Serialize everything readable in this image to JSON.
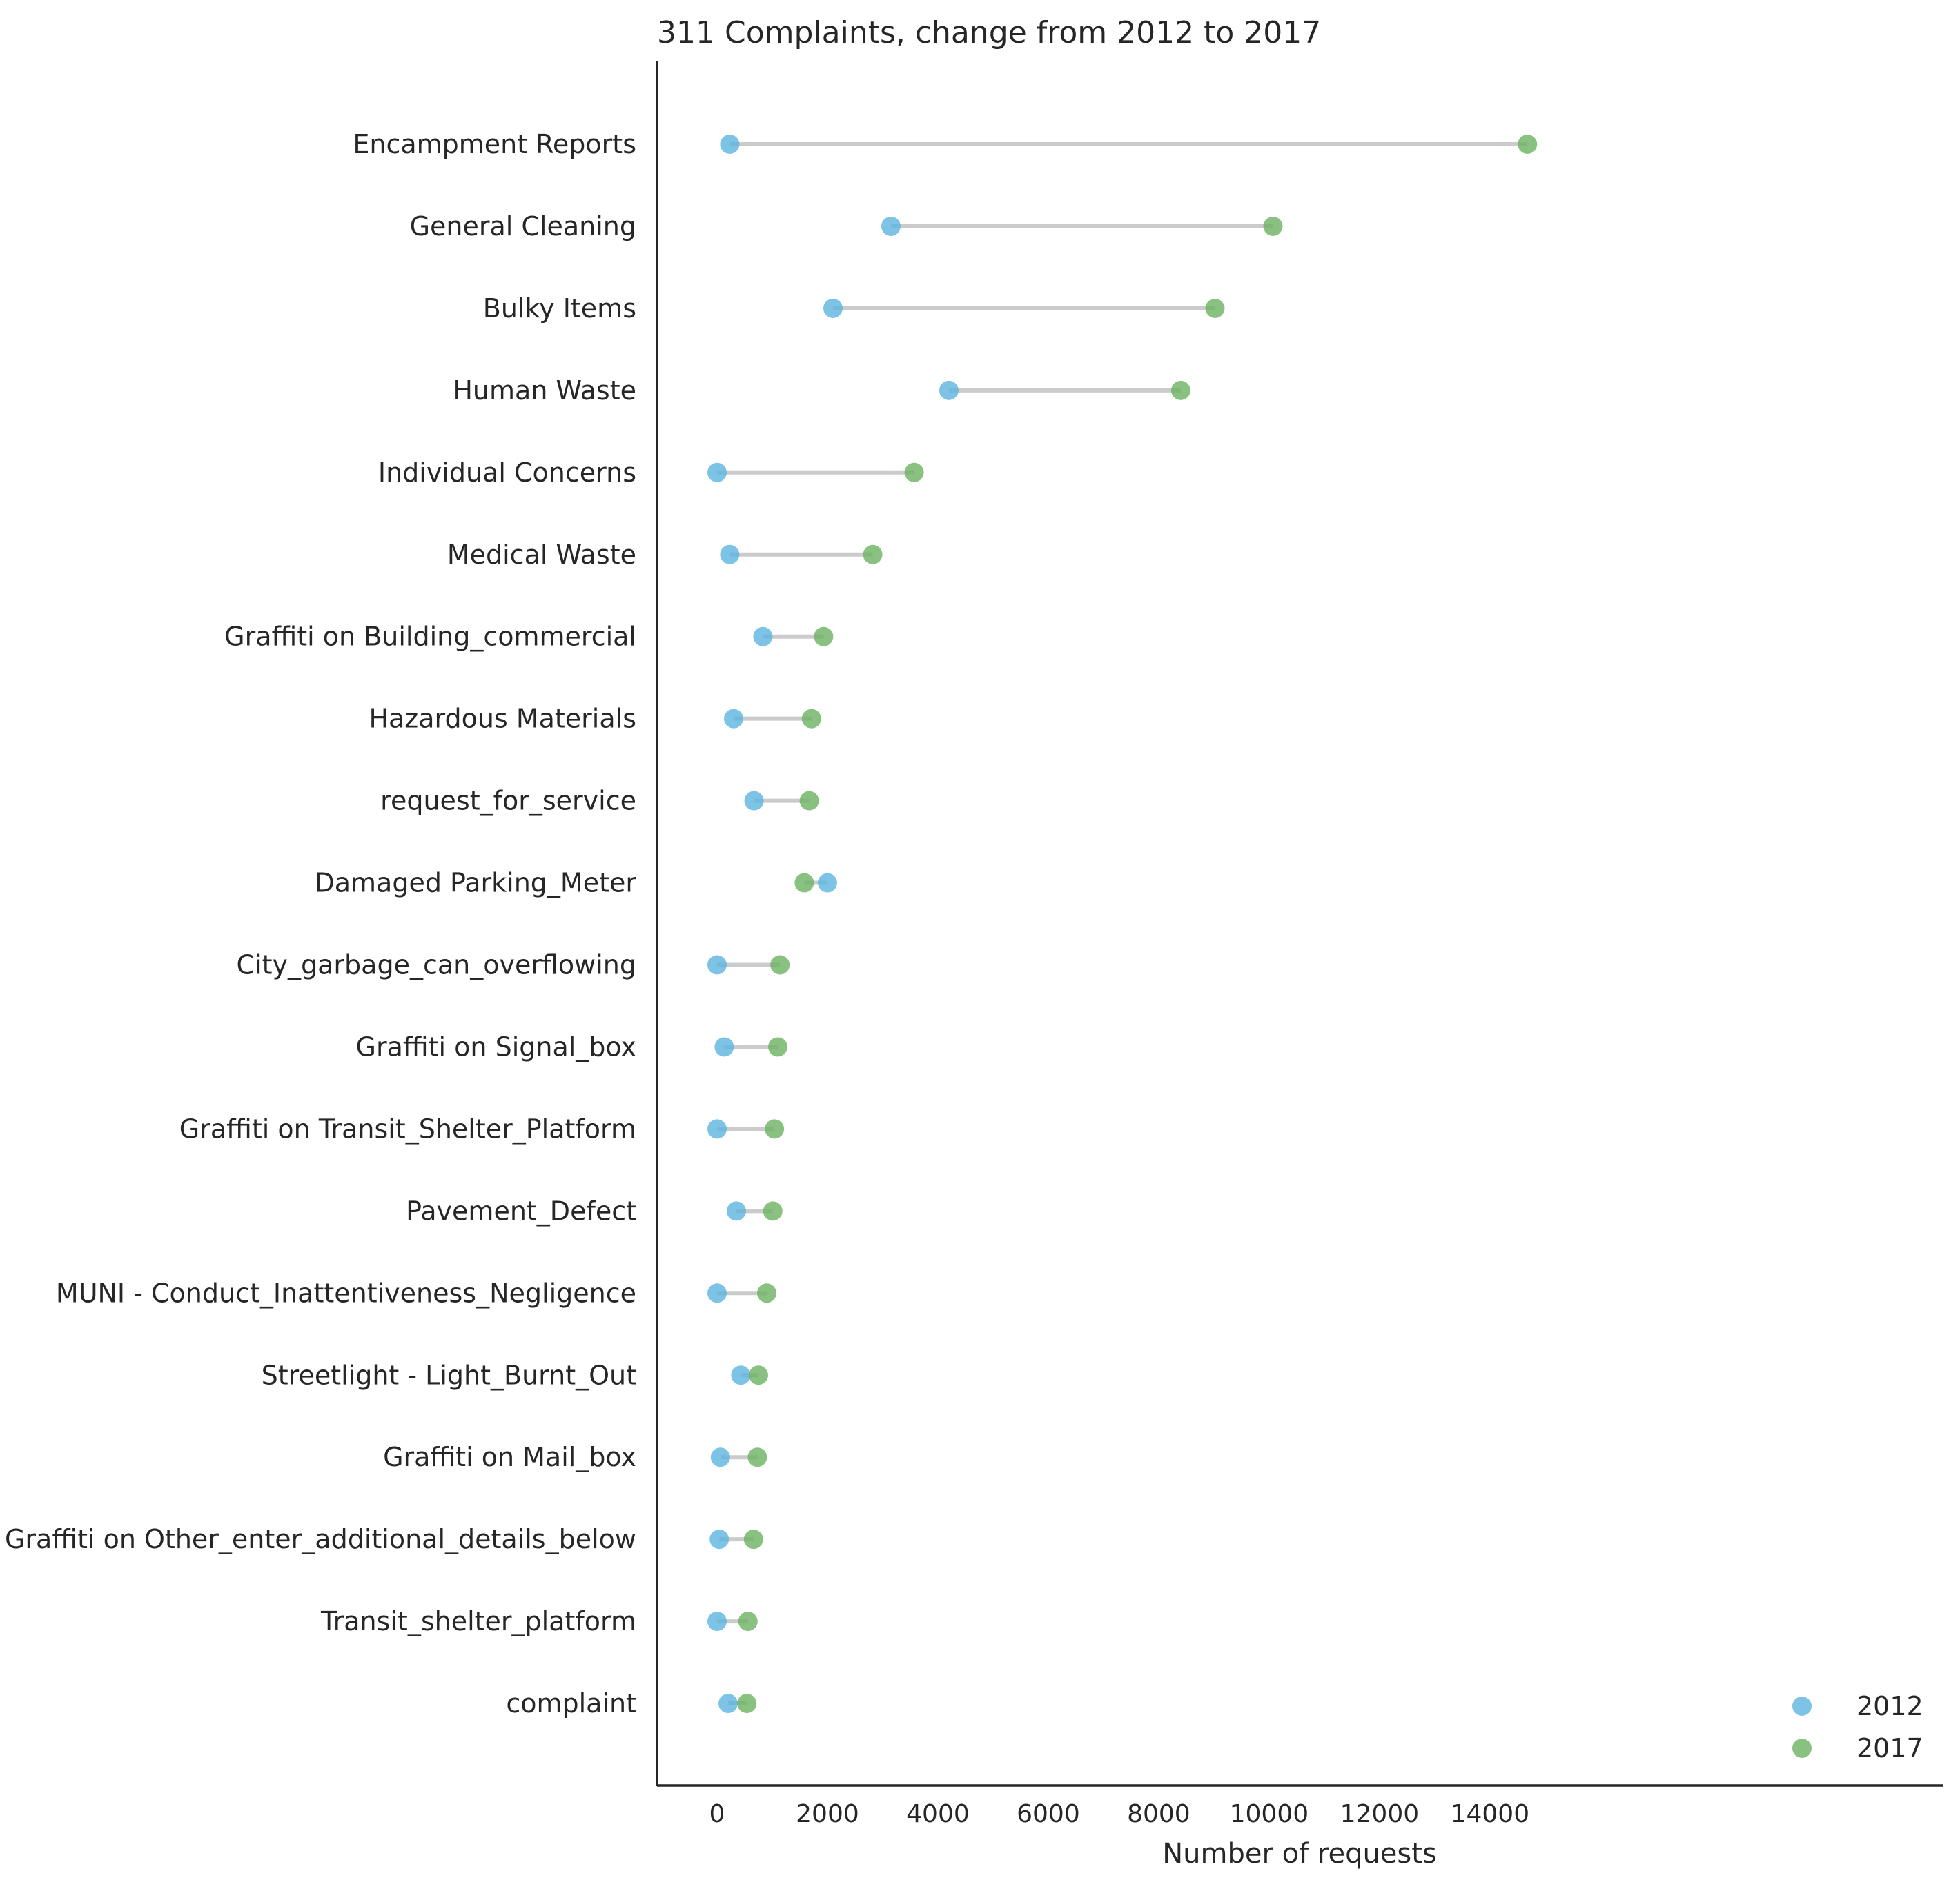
{
  "chart_data": {
    "type": "scatter",
    "title": "311 Complaints, change from 2012 to 2017",
    "xlabel": "Number of requests",
    "ylabel": "",
    "xlim": [
      -750,
      15300
    ],
    "xticks": [
      "0",
      "2000",
      "4000",
      "6000",
      "8000",
      "10000",
      "12000",
      "14000"
    ],
    "grid": false,
    "legend_position": "bottom-right",
    "colors": {
      "2012": "#5bb4e0",
      "2017": "#6bb262",
      "connector": "#c8c8c8"
    },
    "categories": [
      "Encampment Reports",
      "General Cleaning",
      "Bulky Items",
      "Human Waste",
      "Individual Concerns",
      "Medical Waste",
      "Graffiti on Building_commercial",
      "Hazardous Materials",
      "request_for_service",
      "Damaged Parking_Meter",
      "City_garbage_can_overflowing",
      "Graffiti on Signal_box",
      "Graffiti on Transit_Shelter_Platform",
      "Pavement_Defect",
      "MUNI - Conduct_Inattentiveness_Negligence",
      "Streetlight - Light_Burnt_Out",
      "Graffiti on Mail_box",
      "Graffiti on Other_enter_additional_details_below",
      "Transit_shelter_platform",
      "complaint"
    ],
    "series": [
      {
        "name": "2012",
        "values": [
          230,
          3150,
          2100,
          4200,
          0,
          230,
          830,
          300,
          670,
          2000,
          0,
          130,
          0,
          350,
          0,
          430,
          60,
          40,
          0,
          200
        ]
      },
      {
        "name": "2017",
        "values": [
          14680,
          10070,
          9020,
          8400,
          3570,
          2820,
          1930,
          1710,
          1670,
          1580,
          1140,
          1100,
          1040,
          1010,
          900,
          750,
          730,
          660,
          560,
          540
        ]
      }
    ]
  }
}
